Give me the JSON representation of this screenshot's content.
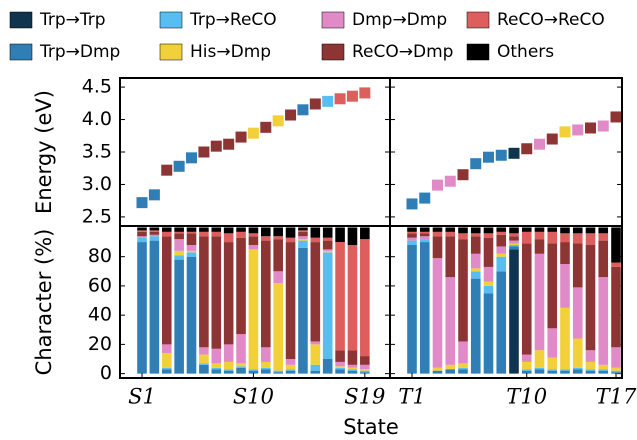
{
  "chart_data": [
    {
      "type": "scatter",
      "y_label": "Energy (eV)",
      "values": [
        2.72,
        2.84,
        3.22,
        3.28,
        3.41,
        3.5,
        3.59,
        3.62,
        3.73,
        3.79,
        3.88,
        3.98,
        4.07,
        4.15,
        4.24,
        4.28,
        4.32,
        4.36,
        4.41
      ],
      "ylim": [
        2.36,
        4.64
      ],
      "yticks": [
        2.5,
        {
          "value": 3,
          "label": "3.0"
        },
        3.5,
        {
          "value": 4,
          "label": "4.0"
        },
        4.5
      ]
    },
    {
      "type": "scatter",
      "values": [
        2.7,
        2.79,
        2.99,
        3.05,
        3.15,
        3.32,
        3.42,
        3.45,
        3.48,
        3.55,
        3.62,
        3.7,
        3.81,
        3.84,
        3.87,
        3.9,
        4.04
      ],
      "ylim": [
        2.36,
        4.64
      ]
    },
    {
      "type": "stacked_bar",
      "y_label": "Character (%)",
      "x_label": "State",
      "categories": [
        "S1",
        null,
        null,
        null,
        null,
        null,
        null,
        null,
        null,
        "S10",
        null,
        null,
        null,
        null,
        null,
        null,
        null,
        null,
        "S19"
      ],
      "ylim": [
        -3,
        101
      ],
      "yticks": [
        0,
        20,
        40,
        60,
        80
      ],
      "series": [
        {
          "name": "Trp→Trp",
          "color": "#0e3450",
          "values": [
            0,
            0,
            0,
            0,
            0,
            0,
            0,
            0,
            0,
            0,
            0,
            0,
            0,
            0,
            0,
            0,
            0,
            0,
            0
          ]
        },
        {
          "name": "Trp→Dmp",
          "color": "#2f7eb6",
          "values": [
            90,
            91,
            3,
            78,
            80,
            6,
            3,
            2,
            4,
            2,
            3,
            1,
            2,
            86,
            2,
            10,
            3,
            2,
            1
          ]
        },
        {
          "name": "Trp→ReCO",
          "color": "#58bdf0",
          "values": [
            3,
            3,
            1,
            3,
            3,
            1,
            1,
            1,
            1,
            1,
            1,
            1,
            1,
            5,
            4,
            73,
            1,
            1,
            1
          ]
        },
        {
          "name": "His→Dmp",
          "color": "#f1d03a",
          "values": [
            0,
            0,
            10,
            3,
            1,
            6,
            3,
            5,
            2,
            82,
            4,
            60,
            3,
            1,
            14,
            1,
            1,
            1,
            1
          ]
        },
        {
          "name": "Dmp→Dmp",
          "color": "#e08bc8",
          "values": [
            1,
            1,
            6,
            8,
            4,
            5,
            10,
            12,
            20,
            3,
            10,
            8,
            4,
            2,
            2,
            1,
            3,
            2,
            3
          ]
        },
        {
          "name": "ReCO→Dmp",
          "color": "#8d3535",
          "values": [
            3,
            2,
            74,
            4,
            8,
            76,
            77,
            70,
            66,
            6,
            73,
            22,
            80,
            3,
            68,
            6,
            8,
            10,
            6
          ]
        },
        {
          "name": "ReCO→ReCO",
          "color": "#de5d5d",
          "values": [
            1,
            1,
            3,
            1,
            1,
            3,
            3,
            6,
            4,
            2,
            3,
            2,
            3,
            1,
            3,
            2,
            74,
            72,
            80
          ]
        },
        {
          "name": "Others",
          "color": "#000000",
          "values": [
            2,
            2,
            3,
            3,
            3,
            3,
            3,
            4,
            3,
            4,
            6,
            6,
            7,
            2,
            7,
            7,
            10,
            12,
            8
          ]
        }
      ]
    },
    {
      "type": "stacked_bar",
      "categories": [
        "T1",
        null,
        null,
        null,
        null,
        null,
        null,
        null,
        null,
        "T10",
        null,
        null,
        null,
        null,
        null,
        null,
        "T17"
      ],
      "ylim": [
        -3,
        101
      ],
      "series": [
        {
          "name": "Trp→Trp",
          "color": "#0e3450",
          "values": [
            0,
            0,
            0,
            0,
            0,
            0,
            0,
            0,
            85,
            0,
            0,
            0,
            0,
            0,
            0,
            0,
            0
          ]
        },
        {
          "name": "Trp→Dmp",
          "color": "#2f7eb6",
          "values": [
            88,
            90,
            2,
            3,
            3,
            65,
            55,
            70,
            2,
            2,
            3,
            2,
            2,
            3,
            2,
            2,
            1
          ]
        },
        {
          "name": "Trp→ReCO",
          "color": "#58bdf0",
          "values": [
            3,
            2,
            0,
            0,
            1,
            5,
            5,
            10,
            1,
            1,
            1,
            1,
            1,
            1,
            1,
            1,
            1
          ]
        },
        {
          "name": "His→Dmp",
          "color": "#f1d03a",
          "values": [
            0,
            0,
            2,
            3,
            3,
            2,
            3,
            2,
            1,
            5,
            12,
            8,
            42,
            20,
            5,
            3,
            2
          ]
        },
        {
          "name": "Dmp→Dmp",
          "color": "#e08bc8",
          "values": [
            2,
            2,
            75,
            60,
            15,
            10,
            10,
            5,
            2,
            5,
            66,
            20,
            30,
            35,
            8,
            60,
            14
          ]
        },
        {
          "name": "ReCO→Dmp",
          "color": "#8d3535",
          "values": [
            3,
            2,
            15,
            28,
            70,
            12,
            20,
            8,
            3,
            76,
            10,
            58,
            15,
            30,
            72,
            25,
            55
          ]
        },
        {
          "name": "ReCO→ReCO",
          "color": "#de5d5d",
          "values": [
            1,
            1,
            3,
            3,
            4,
            2,
            3,
            2,
            2,
            8,
            5,
            8,
            6,
            7,
            8,
            5,
            3
          ]
        },
        {
          "name": "Others",
          "color": "#000000",
          "values": [
            3,
            3,
            3,
            3,
            4,
            4,
            4,
            3,
            4,
            3,
            3,
            3,
            4,
            4,
            4,
            4,
            24
          ]
        }
      ]
    }
  ]
}
